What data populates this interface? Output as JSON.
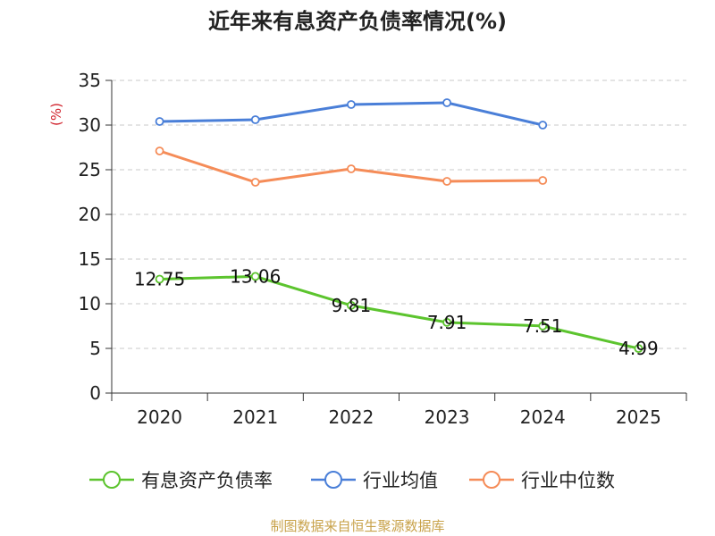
{
  "chart_data": {
    "type": "line",
    "title": "近年来有息资产负债率情况(%)",
    "ylabel": "(%)",
    "xlabel": "",
    "ylim": [
      0,
      35
    ],
    "yticks": [
      0,
      5,
      10,
      15,
      20,
      25,
      30,
      35
    ],
    "grid": true,
    "legend_position": "bottom",
    "categories": [
      "2020",
      "2021",
      "2022",
      "2023",
      "2024",
      "2025"
    ],
    "series": [
      {
        "name": "有息资产负债率",
        "color": "#5cc42e",
        "values": [
          12.75,
          13.06,
          9.81,
          7.91,
          7.51,
          4.99
        ],
        "labels": [
          "12.75",
          "13.06",
          "9.81",
          "7.91",
          "7.51",
          "4.99"
        ]
      },
      {
        "name": "行业均值",
        "color": "#4a7fd8",
        "values": [
          30.4,
          30.6,
          32.3,
          32.5,
          30.0,
          null
        ]
      },
      {
        "name": "行业中位数",
        "color": "#f58c58",
        "values": [
          27.1,
          23.6,
          25.1,
          23.7,
          23.8,
          null
        ]
      }
    ],
    "source": "制图数据来自恒生聚源数据库",
    "source_color": "#c8a24a"
  }
}
